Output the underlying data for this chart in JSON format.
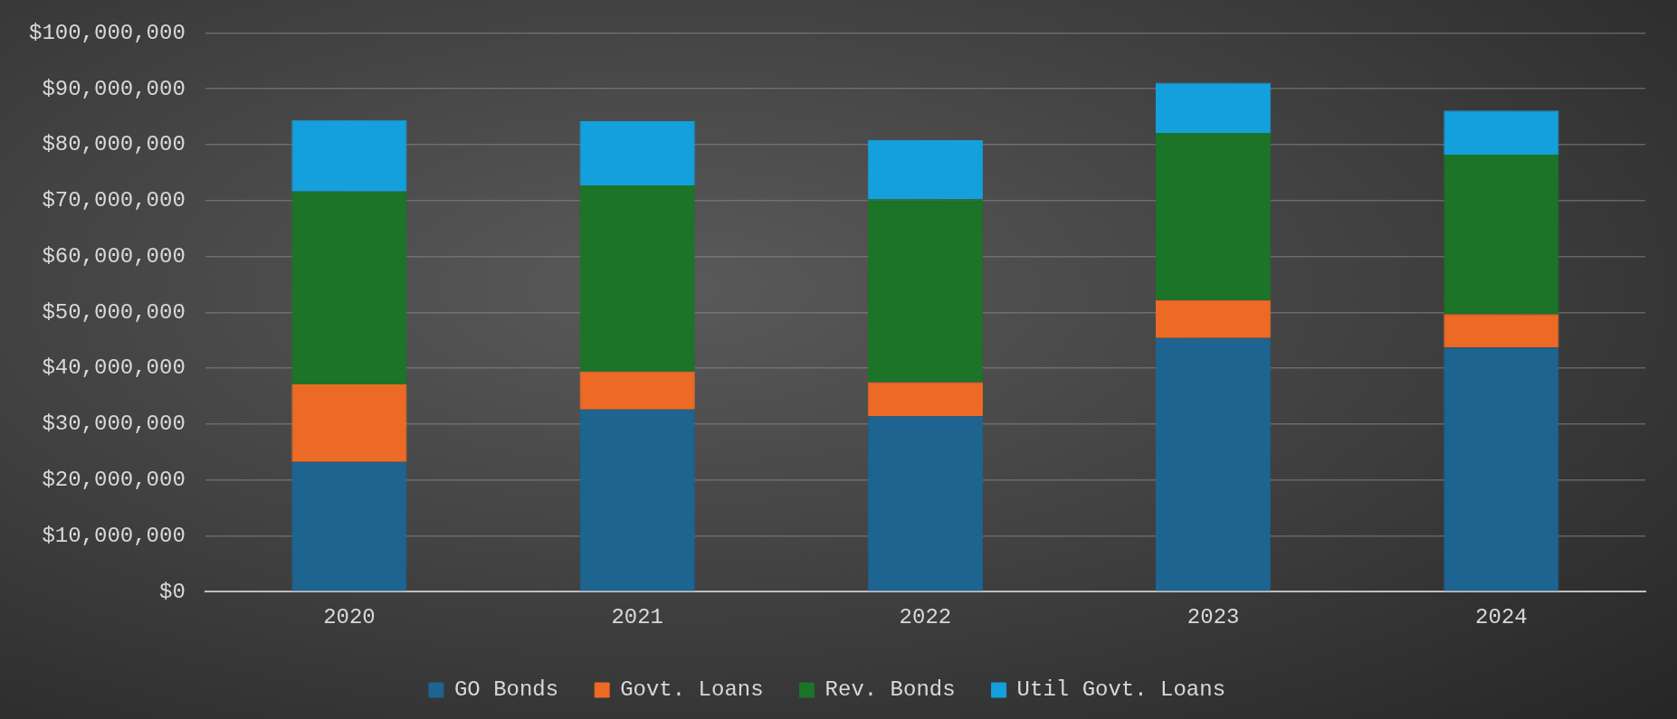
{
  "chart_data": {
    "type": "bar",
    "stacked": true,
    "categories": [
      "2020",
      "2021",
      "2022",
      "2023",
      "2024"
    ],
    "series": [
      {
        "name": "GO Bonds",
        "color": "#1d6491",
        "values": [
          23200000,
          32600000,
          31400000,
          45400000,
          43700000
        ]
      },
      {
        "name": "Govt. Loans",
        "color": "#ec6a26",
        "values": [
          13900000,
          6800000,
          6100000,
          6800000,
          6000000
        ]
      },
      {
        "name": "Rev. Bonds",
        "color": "#1b7428",
        "values": [
          34500000,
          33300000,
          32700000,
          29900000,
          28500000
        ]
      },
      {
        "name": "Util Govt. Loans",
        "color": "#14a0dc",
        "values": [
          12800000,
          11500000,
          10600000,
          9000000,
          7900000
        ]
      }
    ],
    "ylim": [
      0,
      100000000
    ],
    "yticks": [
      {
        "value": 0,
        "label": "$0"
      },
      {
        "value": 10000000,
        "label": "$10,000,000"
      },
      {
        "value": 20000000,
        "label": "$20,000,000"
      },
      {
        "value": 30000000,
        "label": "$30,000,000"
      },
      {
        "value": 40000000,
        "label": "$40,000,000"
      },
      {
        "value": 50000000,
        "label": "$50,000,000"
      },
      {
        "value": 60000000,
        "label": "$60,000,000"
      },
      {
        "value": 70000000,
        "label": "$70,000,000"
      },
      {
        "value": 80000000,
        "label": "$80,000,000"
      },
      {
        "value": 90000000,
        "label": "$90,000,000"
      },
      {
        "value": 100000000,
        "label": "$100,000,000"
      }
    ],
    "grid": "y",
    "legend": "bottom"
  }
}
